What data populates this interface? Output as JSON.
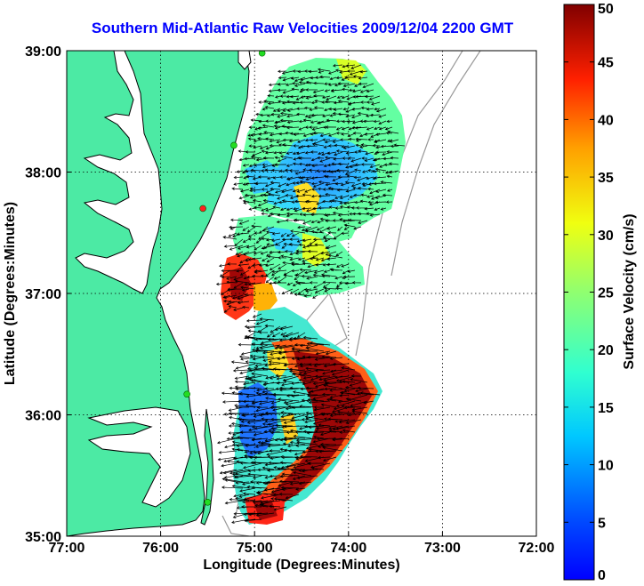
{
  "title": "Southern Mid-Atlantic Raw Velocities 2009/12/04 2200 GMT",
  "x_axis": {
    "label": "Longitude (Degrees:Minutes)",
    "ticks": [
      "77:00",
      "76:00",
      "75:00",
      "74:00",
      "73:00",
      "72:00"
    ],
    "range": [
      -77,
      -72
    ]
  },
  "y_axis": {
    "label": "Latitude (Degrees:Minutes)",
    "ticks": [
      "39:00",
      "38:00",
      "37:00",
      "36:00",
      "35:00"
    ],
    "range": [
      35,
      39
    ]
  },
  "colorbar": {
    "label": "Surface Velocity (cm/s)",
    "ticks": [
      "50",
      "45",
      "40",
      "35",
      "30",
      "25",
      "20",
      "15",
      "10",
      "5",
      "0"
    ],
    "range": [
      0,
      50
    ],
    "colormap": "jet"
  },
  "colors": {
    "land": "#4ceaa4",
    "coast": "#000000",
    "grid": "#000000",
    "station": "#22dd22",
    "station_red": "#ff2020",
    "bathymetry": "#999999"
  },
  "grid": "dotted",
  "stations": [
    {
      "lon": -74.92,
      "lat": 38.98
    },
    {
      "lon": -75.22,
      "lat": 38.22
    },
    {
      "lon": -75.55,
      "lat": 37.7,
      "highlight": "red"
    },
    {
      "lon": -75.72,
      "lat": 36.17
    },
    {
      "lon": -75.5,
      "lat": 35.28
    }
  ]
}
